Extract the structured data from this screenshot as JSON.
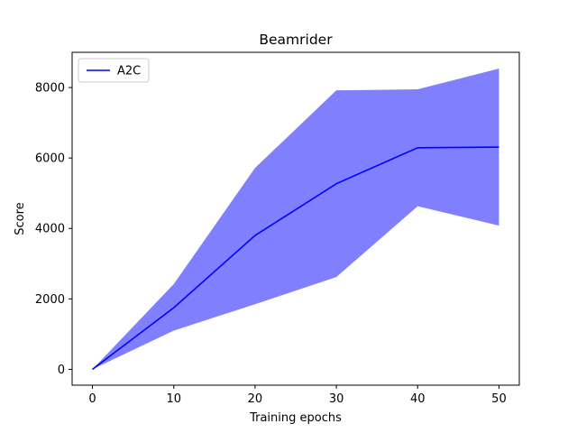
{
  "chart_data": {
    "type": "line",
    "title": "Beamrider",
    "xlabel": "Training epochs",
    "ylabel": "Score",
    "xlim": [
      -2.5,
      52.5
    ],
    "ylim": [
      -450,
      9000
    ],
    "xticks": [
      0,
      10,
      20,
      30,
      40,
      50
    ],
    "yticks": [
      0,
      2000,
      4000,
      6000,
      8000
    ],
    "grid": false,
    "legend_position": "upper-left",
    "series": [
      {
        "name": "A2C",
        "color": "#0000ff",
        "x": [
          0,
          10,
          20,
          30,
          40,
          50
        ],
        "y": [
          0,
          1750,
          3800,
          5270,
          6290,
          6310
        ],
        "band_lower": [
          0,
          1100,
          1850,
          2620,
          4630,
          4080
        ],
        "band_upper": [
          0,
          2420,
          5720,
          7920,
          7950,
          8540
        ],
        "band_color": "#8080ff"
      }
    ]
  }
}
